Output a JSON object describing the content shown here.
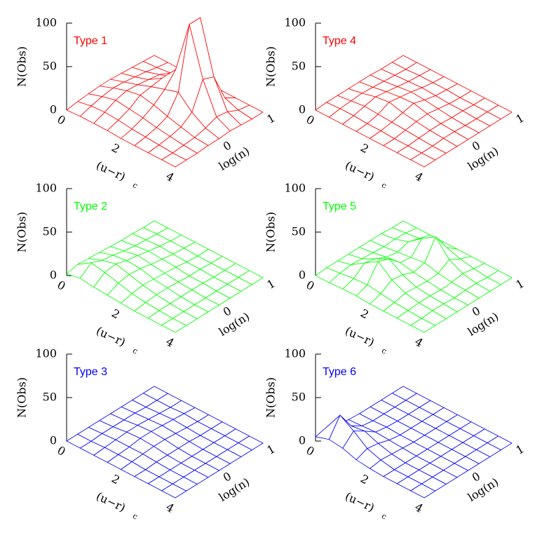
{
  "chart_data": [
    {
      "type": "surface",
      "title": "Type 1",
      "color": "#ff0000",
      "xlabel": "(u−r)",
      "xlabel_sub": "c",
      "ylabel": "log(n)",
      "zlabel": "N(Obs)",
      "x": [
        0,
        0.5,
        1,
        1.5,
        2,
        2.5,
        3,
        3.5,
        4
      ],
      "y": [
        -1,
        -0.75,
        -0.5,
        -0.25,
        0,
        0.25,
        0.5,
        0.75,
        1
      ],
      "xlim": [
        0,
        4
      ],
      "ylim": [
        -1,
        1
      ],
      "zlim": [
        0,
        100
      ],
      "xticks": [
        0,
        2,
        4
      ],
      "yticks": [
        0,
        1
      ],
      "zticks": [
        0,
        50,
        100
      ],
      "z": [
        [
          0,
          2,
          3,
          4,
          4,
          3,
          2,
          1,
          0
        ],
        [
          1,
          5,
          8,
          10,
          9,
          7,
          5,
          2,
          0
        ],
        [
          1,
          6,
          12,
          15,
          14,
          12,
          10,
          4,
          0
        ],
        [
          1,
          5,
          10,
          18,
          20,
          22,
          15,
          5,
          0
        ],
        [
          0,
          3,
          8,
          15,
          25,
          40,
          30,
          8,
          0
        ],
        [
          0,
          2,
          5,
          10,
          30,
          100,
          100,
          15,
          0
        ],
        [
          0,
          1,
          3,
          6,
          15,
          45,
          40,
          8,
          0
        ],
        [
          0,
          0,
          1,
          2,
          5,
          10,
          8,
          2,
          0
        ],
        [
          0,
          0,
          0,
          1,
          1,
          2,
          1,
          0,
          0
        ]
      ]
    },
    {
      "type": "surface",
      "title": "Type 4",
      "color": "#ff0000",
      "xlabel": "(u−r)",
      "xlabel_sub": "c",
      "ylabel": "log(n)",
      "zlabel": "N(Obs)",
      "x": [
        0,
        0.5,
        1,
        1.5,
        2,
        2.5,
        3,
        3.5,
        4
      ],
      "y": [
        -1,
        -0.75,
        -0.5,
        -0.25,
        0,
        0.25,
        0.5,
        0.75,
        1
      ],
      "xlim": [
        0,
        4
      ],
      "ylim": [
        -1,
        1
      ],
      "zlim": [
        0,
        100
      ],
      "xticks": [
        0,
        2,
        4
      ],
      "yticks": [
        0,
        1
      ],
      "zticks": [
        0,
        50,
        100
      ],
      "z": [
        [
          0,
          1,
          1,
          1,
          1,
          1,
          0,
          0,
          0
        ],
        [
          0,
          2,
          3,
          4,
          3,
          2,
          1,
          0,
          0
        ],
        [
          0,
          2,
          5,
          8,
          6,
          4,
          2,
          1,
          0
        ],
        [
          0,
          1,
          4,
          10,
          8,
          6,
          3,
          1,
          0
        ],
        [
          0,
          1,
          3,
          6,
          9,
          5,
          2,
          1,
          0
        ],
        [
          0,
          0,
          2,
          4,
          5,
          3,
          1,
          0,
          0
        ],
        [
          0,
          0,
          1,
          2,
          2,
          1,
          1,
          0,
          0
        ],
        [
          0,
          0,
          0,
          1,
          1,
          0,
          0,
          0,
          0
        ],
        [
          0,
          0,
          0,
          0,
          0,
          0,
          0,
          0,
          0
        ]
      ]
    },
    {
      "type": "surface",
      "title": "Type 2",
      "color": "#00ff00",
      "xlabel": "(u−r)",
      "xlabel_sub": "c",
      "ylabel": "log(n)",
      "zlabel": "N(Obs)",
      "x": [
        0,
        0.5,
        1,
        1.5,
        2,
        2.5,
        3,
        3.5,
        4
      ],
      "y": [
        -1,
        -0.75,
        -0.5,
        -0.25,
        0,
        0.25,
        0.5,
        0.75,
        1
      ],
      "xlim": [
        0,
        4
      ],
      "ylim": [
        -1,
        1
      ],
      "zlim": [
        0,
        100
      ],
      "xticks": [
        0,
        2,
        4
      ],
      "yticks": [
        0,
        1
      ],
      "zticks": [
        0,
        50,
        100
      ],
      "z": [
        [
          2,
          5,
          4,
          3,
          2,
          1,
          1,
          0,
          0
        ],
        [
          5,
          15,
          10,
          8,
          5,
          3,
          2,
          1,
          0
        ],
        [
          3,
          12,
          14,
          10,
          8,
          5,
          3,
          1,
          0
        ],
        [
          2,
          8,
          10,
          9,
          6,
          4,
          2,
          1,
          0
        ],
        [
          1,
          4,
          6,
          5,
          4,
          3,
          1,
          0,
          0
        ],
        [
          0,
          2,
          3,
          3,
          2,
          1,
          1,
          0,
          0
        ],
        [
          0,
          1,
          1,
          1,
          1,
          1,
          0,
          0,
          0
        ],
        [
          0,
          0,
          0,
          0,
          0,
          0,
          0,
          0,
          0
        ],
        [
          0,
          0,
          0,
          0,
          0,
          0,
          0,
          0,
          0
        ]
      ]
    },
    {
      "type": "surface",
      "title": "Type 5",
      "color": "#00ff00",
      "xlabel": "(u−r)",
      "xlabel_sub": "c",
      "ylabel": "log(n)",
      "zlabel": "N(Obs)",
      "x": [
        0,
        0.5,
        1,
        1.5,
        2,
        2.5,
        3,
        3.5,
        4
      ],
      "y": [
        -1,
        -0.75,
        -0.5,
        -0.25,
        0,
        0.25,
        0.5,
        0.75,
        1
      ],
      "xlim": [
        0,
        4
      ],
      "ylim": [
        -1,
        1
      ],
      "zlim": [
        0,
        100
      ],
      "xticks": [
        0,
        2,
        4
      ],
      "yticks": [
        0,
        1
      ],
      "zticks": [
        0,
        50,
        100
      ],
      "z": [
        [
          0,
          1,
          1,
          1,
          1,
          1,
          1,
          0,
          0
        ],
        [
          0,
          3,
          5,
          4,
          3,
          2,
          3,
          2,
          0
        ],
        [
          1,
          5,
          15,
          12,
          6,
          4,
          8,
          4,
          0
        ],
        [
          1,
          6,
          25,
          20,
          8,
          6,
          20,
          8,
          0
        ],
        [
          0,
          4,
          12,
          10,
          5,
          8,
          30,
          10,
          0
        ],
        [
          0,
          2,
          5,
          4,
          3,
          4,
          12,
          5,
          0
        ],
        [
          0,
          1,
          2,
          2,
          1,
          2,
          4,
          2,
          0
        ],
        [
          0,
          0,
          1,
          1,
          0,
          1,
          1,
          0,
          0
        ],
        [
          0,
          0,
          0,
          0,
          0,
          0,
          0,
          0,
          0
        ]
      ]
    },
    {
      "type": "surface",
      "title": "Type 3",
      "color": "#0000ff",
      "xlabel": "(u−r)",
      "xlabel_sub": "c",
      "ylabel": "log(n)",
      "zlabel": "N(Obs)",
      "x": [
        0,
        0.5,
        1,
        1.5,
        2,
        2.5,
        3,
        3.5,
        4
      ],
      "y": [
        -1,
        -0.75,
        -0.5,
        -0.25,
        0,
        0.25,
        0.5,
        0.75,
        1
      ],
      "xlim": [
        0,
        4
      ],
      "ylim": [
        -1,
        1
      ],
      "zlim": [
        0,
        100
      ],
      "xticks": [
        0,
        2,
        4
      ],
      "yticks": [
        0,
        1
      ],
      "zticks": [
        0,
        50,
        100
      ],
      "z": [
        [
          0,
          0,
          0,
          0,
          0,
          0,
          0,
          0,
          0
        ],
        [
          0,
          0,
          1,
          1,
          1,
          1,
          0,
          0,
          0
        ],
        [
          0,
          1,
          2,
          3,
          3,
          2,
          1,
          0,
          0
        ],
        [
          0,
          1,
          2,
          4,
          4,
          3,
          2,
          1,
          0
        ],
        [
          0,
          1,
          2,
          3,
          3,
          2,
          1,
          0,
          0
        ],
        [
          0,
          0,
          1,
          1,
          1,
          1,
          0,
          0,
          0
        ],
        [
          0,
          0,
          0,
          0,
          0,
          0,
          0,
          0,
          0
        ],
        [
          0,
          0,
          0,
          0,
          0,
          0,
          0,
          0,
          0
        ],
        [
          0,
          0,
          0,
          0,
          0,
          0,
          0,
          0,
          0
        ]
      ]
    },
    {
      "type": "surface",
      "title": "Type 6",
      "color": "#0000ff",
      "xlabel": "(u−r)",
      "xlabel_sub": "c",
      "ylabel": "log(n)",
      "zlabel": "N(Obs)",
      "x": [
        0,
        0.5,
        1,
        1.5,
        2,
        2.5,
        3,
        3.5,
        4
      ],
      "y": [
        -1,
        -0.75,
        -0.5,
        -0.25,
        0,
        0.25,
        0.5,
        0.75,
        1
      ],
      "xlim": [
        0,
        4
      ],
      "ylim": [
        -1,
        1
      ],
      "zlim": [
        0,
        100
      ],
      "xticks": [
        0,
        2,
        4
      ],
      "yticks": [
        0,
        1
      ],
      "zticks": [
        0,
        50,
        100
      ],
      "z": [
        [
          5,
          8,
          3,
          1,
          0,
          0,
          0,
          0,
          0
        ],
        [
          10,
          30,
          10,
          2,
          0,
          0,
          0,
          0,
          0
        ],
        [
          8,
          20,
          12,
          3,
          1,
          0,
          0,
          0,
          0
        ],
        [
          3,
          8,
          6,
          2,
          0,
          0,
          0,
          0,
          0
        ],
        [
          1,
          3,
          2,
          1,
          0,
          0,
          0,
          0,
          0
        ],
        [
          0,
          0,
          0,
          0,
          0,
          0,
          0,
          0,
          0
        ],
        [
          0,
          0,
          0,
          0,
          0,
          0,
          0,
          0,
          0
        ],
        [
          0,
          0,
          0,
          0,
          0,
          0,
          0,
          0,
          0
        ],
        [
          0,
          0,
          0,
          0,
          0,
          0,
          0,
          0,
          0
        ]
      ]
    }
  ]
}
